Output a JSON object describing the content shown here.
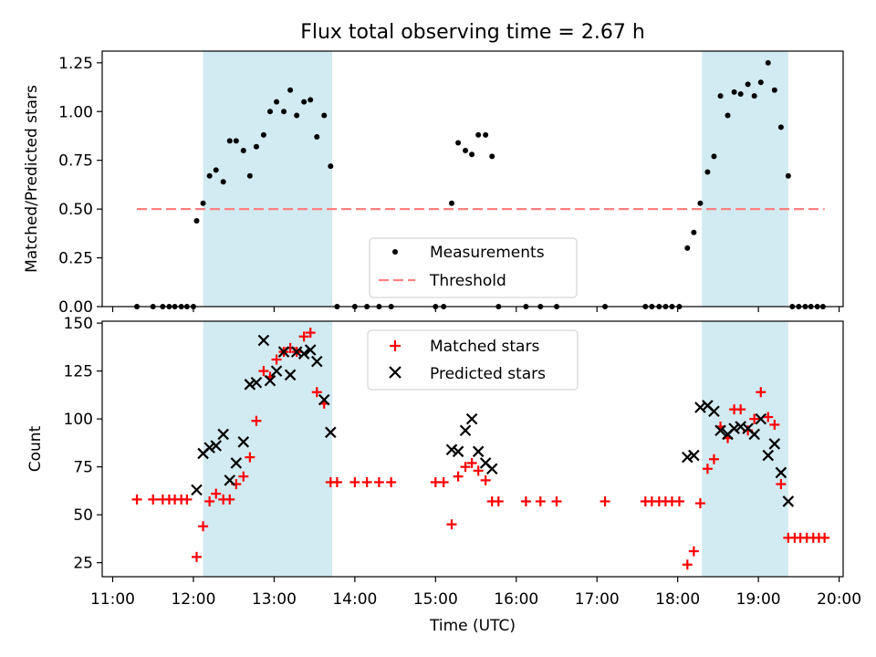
{
  "figure": {
    "title": "Flux total observing time = 2.67 h",
    "xlabel": "Time (UTC)",
    "xticks": [
      {
        "t": 11.0,
        "label": "11:00"
      },
      {
        "t": 12.0,
        "label": "12:00"
      },
      {
        "t": 13.0,
        "label": "13:00"
      },
      {
        "t": 14.0,
        "label": "14:00"
      },
      {
        "t": 15.0,
        "label": "15:00"
      },
      {
        "t": 16.0,
        "label": "16:00"
      },
      {
        "t": 17.0,
        "label": "17:00"
      },
      {
        "t": 18.0,
        "label": "18:00"
      },
      {
        "t": 19.0,
        "label": "19:00"
      },
      {
        "t": 20.0,
        "label": "20:00"
      }
    ],
    "xlim": [
      10.87,
      20.05
    ],
    "shaded_spans": [
      [
        12.12,
        13.72
      ],
      [
        18.3,
        19.37
      ]
    ],
    "colors": {
      "span": "#add8e6",
      "measurements": "#000000",
      "threshold": "#ff8080",
      "matched": "#ff0000",
      "predicted": "#000000"
    }
  },
  "chart_data": [
    {
      "type": "scatter",
      "ylabel": "Matched/Predicted stars",
      "ylim": [
        0,
        1.31
      ],
      "yticks": [
        "0.00",
        "0.25",
        "0.50",
        "0.75",
        "1.00",
        "1.25"
      ],
      "legend": {
        "position": "lower center",
        "entries": [
          "Measurements",
          "Threshold"
        ]
      },
      "threshold": {
        "name": "Threshold",
        "value": 0.5,
        "x_range": [
          11.3,
          19.82
        ]
      },
      "series": [
        {
          "name": "Measurements",
          "points": [
            [
              11.3,
              0
            ],
            [
              11.5,
              0
            ],
            [
              11.62,
              0
            ],
            [
              11.7,
              0
            ],
            [
              11.77,
              0
            ],
            [
              11.85,
              0
            ],
            [
              11.92,
              0
            ],
            [
              12.0,
              0
            ],
            [
              12.04,
              0.44
            ],
            [
              12.12,
              0.53
            ],
            [
              12.2,
              0.67
            ],
            [
              12.28,
              0.7
            ],
            [
              12.37,
              0.64
            ],
            [
              12.45,
              0.85
            ],
            [
              12.53,
              0.85
            ],
            [
              12.62,
              0.8
            ],
            [
              12.7,
              0.67
            ],
            [
              12.78,
              0.82
            ],
            [
              12.87,
              0.88
            ],
            [
              12.95,
              1.0
            ],
            [
              13.03,
              1.05
            ],
            [
              13.12,
              1.0
            ],
            [
              13.2,
              1.11
            ],
            [
              13.28,
              0.98
            ],
            [
              13.37,
              1.05
            ],
            [
              13.45,
              1.06
            ],
            [
              13.53,
              0.87
            ],
            [
              13.62,
              0.98
            ],
            [
              13.7,
              0.72
            ],
            [
              13.78,
              0
            ],
            [
              14.0,
              0
            ],
            [
              14.15,
              0
            ],
            [
              14.3,
              0
            ],
            [
              14.45,
              0
            ],
            [
              15.0,
              0
            ],
            [
              15.1,
              0
            ],
            [
              15.2,
              0.53
            ],
            [
              15.28,
              0.84
            ],
            [
              15.37,
              0.8
            ],
            [
              15.45,
              0.78
            ],
            [
              15.53,
              0.88
            ],
            [
              15.62,
              0.88
            ],
            [
              15.7,
              0.77
            ],
            [
              15.78,
              0
            ],
            [
              16.12,
              0
            ],
            [
              16.3,
              0
            ],
            [
              16.5,
              0
            ],
            [
              17.1,
              0
            ],
            [
              17.6,
              0
            ],
            [
              17.68,
              0
            ],
            [
              17.77,
              0
            ],
            [
              17.85,
              0
            ],
            [
              17.93,
              0
            ],
            [
              18.02,
              0
            ],
            [
              18.12,
              0.3
            ],
            [
              18.2,
              0.38
            ],
            [
              18.28,
              0.53
            ],
            [
              18.37,
              0.69
            ],
            [
              18.45,
              0.77
            ],
            [
              18.53,
              1.08
            ],
            [
              18.62,
              0.98
            ],
            [
              18.7,
              1.1
            ],
            [
              18.78,
              1.09
            ],
            [
              18.87,
              1.14
            ],
            [
              18.95,
              1.08
            ],
            [
              19.03,
              1.15
            ],
            [
              19.12,
              1.25
            ],
            [
              19.2,
              1.11
            ],
            [
              19.28,
              0.92
            ],
            [
              19.37,
              0.67
            ],
            [
              19.42,
              0
            ],
            [
              19.5,
              0
            ],
            [
              19.58,
              0
            ],
            [
              19.65,
              0
            ],
            [
              19.73,
              0
            ],
            [
              19.8,
              0
            ]
          ]
        }
      ]
    },
    {
      "type": "scatter",
      "ylabel": "Count",
      "ylim": [
        17.7,
        151
      ],
      "yticks": [
        "25",
        "50",
        "75",
        "100",
        "125",
        "150"
      ],
      "legend": {
        "position": "upper center",
        "entries": [
          "Matched stars",
          "Predicted stars"
        ]
      },
      "series": [
        {
          "name": "Matched stars",
          "marker": "+",
          "points": [
            [
              11.3,
              58
            ],
            [
              11.5,
              58
            ],
            [
              11.62,
              58
            ],
            [
              11.7,
              58
            ],
            [
              11.77,
              58
            ],
            [
              11.85,
              58
            ],
            [
              11.92,
              58
            ],
            [
              12.04,
              28
            ],
            [
              12.12,
              44
            ],
            [
              12.2,
              57
            ],
            [
              12.28,
              61
            ],
            [
              12.37,
              58
            ],
            [
              12.45,
              58
            ],
            [
              12.53,
              66
            ],
            [
              12.62,
              70
            ],
            [
              12.7,
              80
            ],
            [
              12.78,
              99
            ],
            [
              12.87,
              125
            ],
            [
              12.95,
              122
            ],
            [
              13.03,
              131
            ],
            [
              13.12,
              135
            ],
            [
              13.2,
              137
            ],
            [
              13.28,
              135
            ],
            [
              13.37,
              143
            ],
            [
              13.45,
              145
            ],
            [
              13.53,
              114
            ],
            [
              13.62,
              108
            ],
            [
              13.7,
              67
            ],
            [
              13.78,
              67
            ],
            [
              14.0,
              67
            ],
            [
              14.15,
              67
            ],
            [
              14.3,
              67
            ],
            [
              14.45,
              67
            ],
            [
              15.0,
              67
            ],
            [
              15.1,
              67
            ],
            [
              15.2,
              45
            ],
            [
              15.28,
              70
            ],
            [
              15.37,
              75
            ],
            [
              15.45,
              77
            ],
            [
              15.53,
              73
            ],
            [
              15.62,
              68
            ],
            [
              15.7,
              57
            ],
            [
              15.78,
              57
            ],
            [
              16.12,
              57
            ],
            [
              16.3,
              57
            ],
            [
              16.5,
              57
            ],
            [
              17.1,
              57
            ],
            [
              17.6,
              57
            ],
            [
              17.68,
              57
            ],
            [
              17.77,
              57
            ],
            [
              17.85,
              57
            ],
            [
              17.93,
              57
            ],
            [
              18.02,
              57
            ],
            [
              18.12,
              24
            ],
            [
              18.2,
              31
            ],
            [
              18.28,
              56
            ],
            [
              18.37,
              74
            ],
            [
              18.45,
              79
            ],
            [
              18.53,
              96
            ],
            [
              18.62,
              90
            ],
            [
              18.7,
              105
            ],
            [
              18.78,
              105
            ],
            [
              18.87,
              94
            ],
            [
              18.95,
              100
            ],
            [
              19.03,
              114
            ],
            [
              19.12,
              101
            ],
            [
              19.2,
              97
            ],
            [
              19.28,
              66
            ],
            [
              19.37,
              38
            ],
            [
              19.45,
              38
            ],
            [
              19.52,
              38
            ],
            [
              19.6,
              38
            ],
            [
              19.68,
              38
            ],
            [
              19.75,
              38
            ],
            [
              19.82,
              38
            ]
          ]
        },
        {
          "name": "Predicted stars",
          "marker": "x",
          "points": [
            [
              12.04,
              63
            ],
            [
              12.12,
              82
            ],
            [
              12.2,
              85
            ],
            [
              12.28,
              86
            ],
            [
              12.37,
              92
            ],
            [
              12.45,
              68
            ],
            [
              12.53,
              77
            ],
            [
              12.62,
              88
            ],
            [
              12.7,
              118
            ],
            [
              12.78,
              119
            ],
            [
              12.87,
              141
            ],
            [
              12.95,
              120
            ],
            [
              13.03,
              125
            ],
            [
              13.12,
              135
            ],
            [
              13.2,
              123
            ],
            [
              13.28,
              135
            ],
            [
              13.37,
              134
            ],
            [
              13.45,
              136
            ],
            [
              13.53,
              130
            ],
            [
              13.62,
              110
            ],
            [
              13.7,
              93
            ],
            [
              15.2,
              84
            ],
            [
              15.28,
              83
            ],
            [
              15.37,
              94
            ],
            [
              15.45,
              100
            ],
            [
              15.53,
              83
            ],
            [
              15.62,
              77
            ],
            [
              15.7,
              74
            ],
            [
              18.12,
              80
            ],
            [
              18.2,
              81
            ],
            [
              18.28,
              106
            ],
            [
              18.37,
              107
            ],
            [
              18.45,
              104
            ],
            [
              18.53,
              94
            ],
            [
              18.62,
              92
            ],
            [
              18.7,
              95
            ],
            [
              18.78,
              96
            ],
            [
              18.87,
              95
            ],
            [
              18.95,
              92
            ],
            [
              19.03,
              100
            ],
            [
              19.12,
              81
            ],
            [
              19.2,
              87
            ],
            [
              19.28,
              72
            ],
            [
              19.37,
              57
            ]
          ]
        }
      ]
    }
  ]
}
